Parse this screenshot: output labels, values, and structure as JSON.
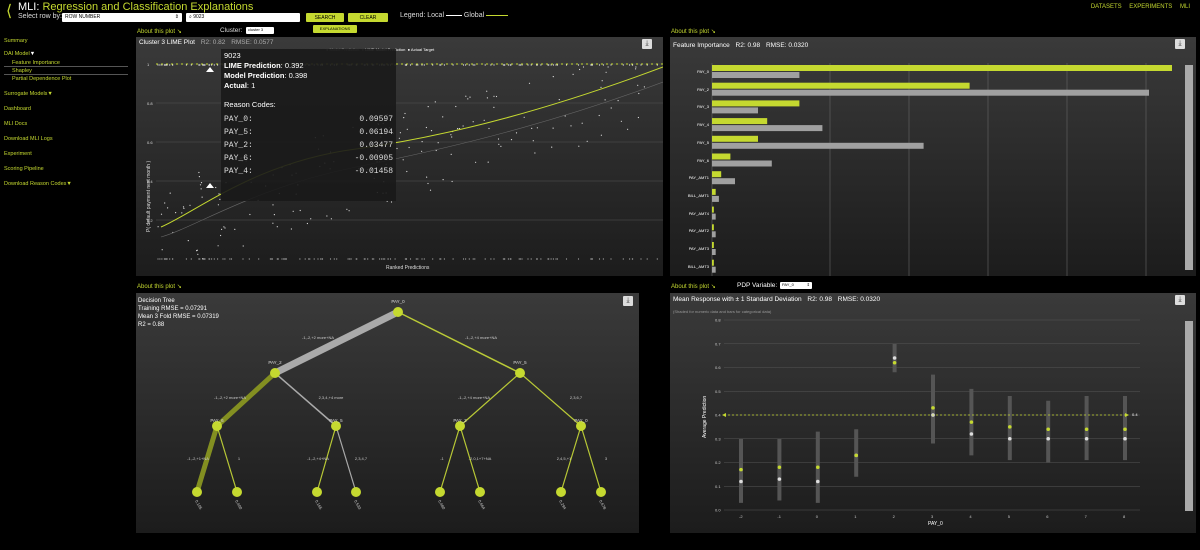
{
  "header": {
    "back_icon": "back-chevron-icon",
    "title_prefix": "MLI:",
    "title_sub": "Regression and Classification Explanations",
    "row_label": "Select row by:",
    "row_select": "ROW NUMBER",
    "row_value": "9023",
    "search_label": "SEARCH",
    "clear_label": "CLEAR",
    "legend_label": "Legend:",
    "legend_local": "Local",
    "legend_global": "Global",
    "nav": [
      "DATASETS",
      "EXPERIMENTS",
      "MLI"
    ]
  },
  "sidebar": {
    "items": [
      {
        "label": "Summary"
      },
      {
        "label": "DAI Model",
        "caret": "▼"
      },
      {
        "label": "Surrogate Models",
        "caret": "▼"
      },
      {
        "label": "Dashboard"
      },
      {
        "label": "MLI Docs"
      },
      {
        "label": "Download MLI Logs"
      },
      {
        "label": "Experiment"
      },
      {
        "label": "Scoring Pipeline"
      },
      {
        "label": "Download Reason Codes",
        "caret": "▼"
      }
    ],
    "subitems": [
      "Feature Importance",
      "Shapley",
      "Partial Dependence Plot"
    ]
  },
  "panels": {
    "lime": {
      "about": "About this plot ↘",
      "cluster_label": "Cluster:",
      "cluster_value": "cluster 3",
      "explanations_label": "EXPLANATIONS",
      "title": "Cluster 3 LIME Plot",
      "r2": "R2: 0.82",
      "rmse": "RMSE: 0.0577",
      "legend": [
        "Model Prediction",
        "LIME Model Prediction",
        "Actual Target"
      ],
      "ylabel": "P( default payment next month )",
      "xlabel": "Ranked Predictions",
      "yticks": [
        "1",
        "0.8",
        "0.6",
        "0.4",
        "0.2"
      ],
      "tooltip": {
        "row": "9023",
        "lime_label": "LIME Prediction",
        "lime_value": ": 0.392",
        "model_label": "Model Prediction",
        "model_value": ": 0.398",
        "actual_label": "Actual",
        "actual_value": ": 1",
        "reason_title": "Reason Codes:",
        "codes": [
          {
            "name": "PAY_0:",
            "value": "0.09597"
          },
          {
            "name": "PAY_5:",
            "value": "0.06194"
          },
          {
            "name": "PAY_2:",
            "value": "0.03477"
          },
          {
            "name": "PAY_6:",
            "value": "-0.00905"
          },
          {
            "name": "PAY_4:",
            "value": "-0.01458"
          }
        ]
      }
    },
    "fi": {
      "about": "About this plot ↘",
      "title": "Feature Importance",
      "r2": "R2: 0.98",
      "rmse": "RMSE: 0.0320",
      "features": [
        {
          "name": "PAY_0",
          "local": 1.0,
          "global": 0.19
        },
        {
          "name": "PAY_2",
          "local": 0.56,
          "global": 0.95
        },
        {
          "name": "PAY_3",
          "local": 0.19,
          "global": 0.1
        },
        {
          "name": "PAY_4",
          "local": 0.12,
          "global": 0.24
        },
        {
          "name": "PAY_5",
          "local": 0.1,
          "global": 0.46
        },
        {
          "name": "PAY_6",
          "local": 0.04,
          "global": 0.13
        },
        {
          "name": "PAY_AMT1",
          "local": 0.02,
          "global": 0.05
        },
        {
          "name": "BILL_AMT1",
          "local": 0.008,
          "global": 0.015
        },
        {
          "name": "PAY_AMT4",
          "local": 0.004,
          "global": 0.008
        },
        {
          "name": "PAY_AMT2",
          "local": 0.004,
          "global": 0.008
        },
        {
          "name": "PAY_AMT3",
          "local": 0.004,
          "global": 0.008
        },
        {
          "name": "BILL_AMT3",
          "local": 0.004,
          "global": 0.008
        }
      ]
    },
    "dt": {
      "about": "About this plot ↘",
      "lines": [
        "Decision Tree",
        "Training RMSE = 0.07291",
        "Mean 3 Fold RMSE = 0.07319",
        "R2 = 0.88"
      ],
      "nodes": [
        "PAY_0",
        "PAY_2",
        "PAY_5",
        "PAY_6",
        "PAY_5",
        "PAY_3",
        "PAY_0"
      ],
      "edges": [
        "-1,-2,+2 more+NA",
        "2,3,4,+4 more",
        "-1,-2,+2 more+NA",
        "2,3,4,+4 more",
        "-1,-2,+4 more+NA",
        "2,3,6,7",
        "-1,-2,+1+NA",
        "1",
        "-1,-2,+4+NA",
        "2,3,4,7",
        "-1",
        "-2,0,1+7+NA",
        "2,4,5,+1",
        "3"
      ],
      "leaves": [
        "0.105",
        "0.400",
        "0.165",
        "0.533",
        "0.480",
        "0.664",
        "0.294",
        "0.678"
      ]
    },
    "pdp": {
      "about": "About this plot ↘",
      "variable_label": "PDP Variable:",
      "variable_value": "PAY_0",
      "title": "Mean Response with ± 1 Standard Deviation",
      "r2": "R2: 0.98",
      "rmse": "RMSE: 0.0320",
      "note": "(Shaded for numeric data and bars for categorical data)",
      "ylabel": "Average Prediction",
      "xlabel": "PAY_0",
      "ref_label": "0.4"
    }
  },
  "chart_data": [
    {
      "type": "bar",
      "title": "Feature Importance",
      "categories": [
        "PAY_0",
        "PAY_2",
        "PAY_3",
        "PAY_4",
        "PAY_5",
        "PAY_6",
        "PAY_AMT1",
        "BILL_AMT1",
        "PAY_AMT4",
        "PAY_AMT2",
        "PAY_AMT3",
        "BILL_AMT3"
      ],
      "series": [
        {
          "name": "Local",
          "values": [
            1.0,
            0.56,
            0.19,
            0.12,
            0.1,
            0.04,
            0.02,
            0.008,
            0.004,
            0.004,
            0.004,
            0.004
          ]
        },
        {
          "name": "Global",
          "values": [
            0.19,
            0.95,
            0.1,
            0.24,
            0.46,
            0.13,
            0.05,
            0.015,
            0.008,
            0.008,
            0.008,
            0.008
          ]
        }
      ]
    },
    {
      "type": "scatter",
      "title": "Mean Response with ± 1 Standard Deviation",
      "x": [
        "-2",
        "-1",
        "0",
        "1",
        "2",
        "3",
        "4",
        "5",
        "6",
        "7",
        "8"
      ],
      "series": [
        {
          "name": "Local",
          "values": [
            0.17,
            0.18,
            0.18,
            0.23,
            0.62,
            0.43,
            0.37,
            0.35,
            0.34,
            0.34,
            0.34
          ]
        },
        {
          "name": "Global",
          "values": [
            0.12,
            0.13,
            0.12,
            0.23,
            0.64,
            0.4,
            0.32,
            0.3,
            0.3,
            0.3,
            0.3
          ]
        }
      ],
      "err_low": [
        0.03,
        0.04,
        0.03,
        0.14,
        0.58,
        0.28,
        0.23,
        0.21,
        0.2,
        0.21,
        0.21
      ],
      "err_high": [
        0.3,
        0.3,
        0.33,
        0.34,
        0.7,
        0.57,
        0.51,
        0.48,
        0.46,
        0.48,
        0.48
      ],
      "reference_y": 0.4,
      "ylim": [
        0,
        0.8
      ],
      "xlabel": "PAY_0",
      "ylabel": "Average Prediction"
    }
  ]
}
